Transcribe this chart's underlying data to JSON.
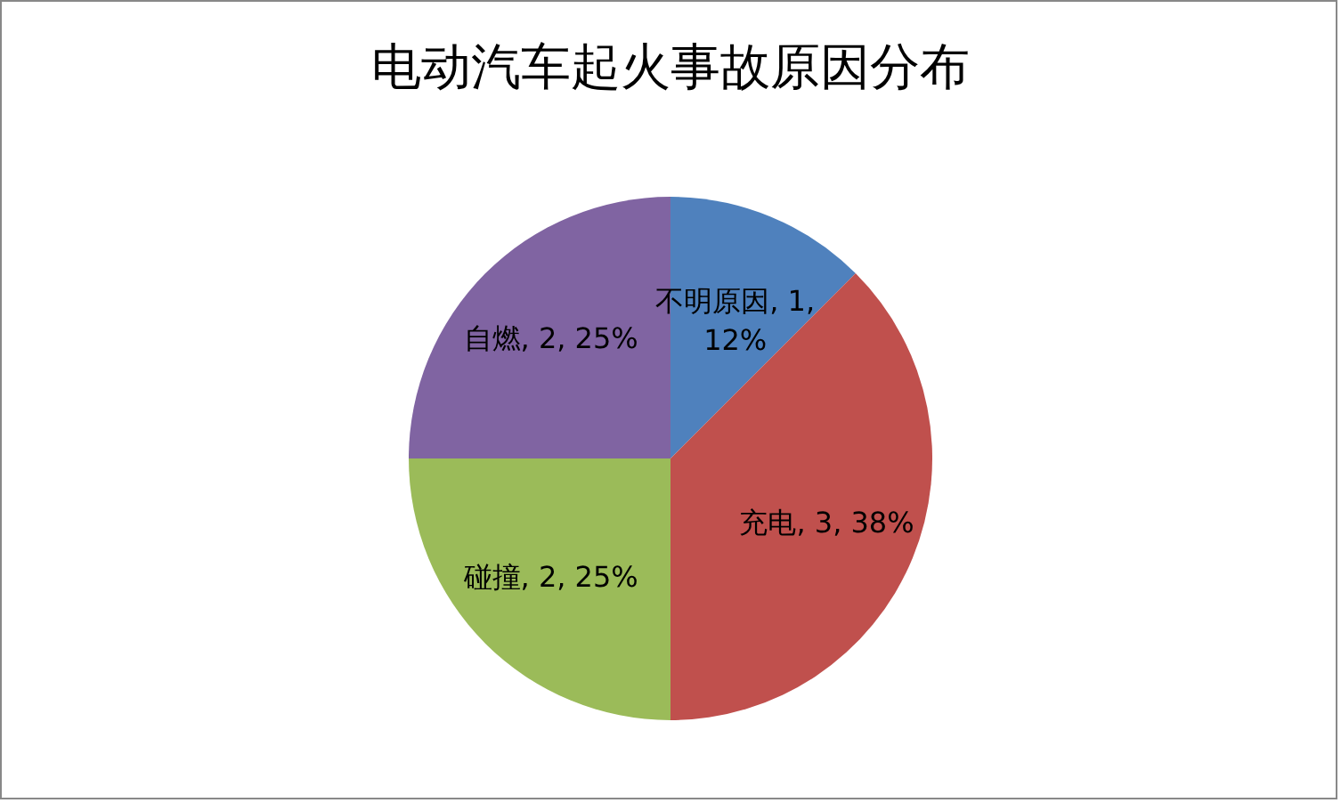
{
  "chart_data": {
    "type": "pie",
    "title": "电动汽车起火事故原因分布",
    "categories": [
      "不明原因",
      "充电",
      "碰撞",
      "自燃"
    ],
    "values": [
      1,
      3,
      2,
      2
    ],
    "colors": [
      "#4f81bd",
      "#c0504d",
      "#9bbb59",
      "#8064a2"
    ],
    "value_labels": [
      "1, 12%",
      "3, 38%",
      "2, 25%",
      "2, 25%"
    ],
    "legend": false
  }
}
